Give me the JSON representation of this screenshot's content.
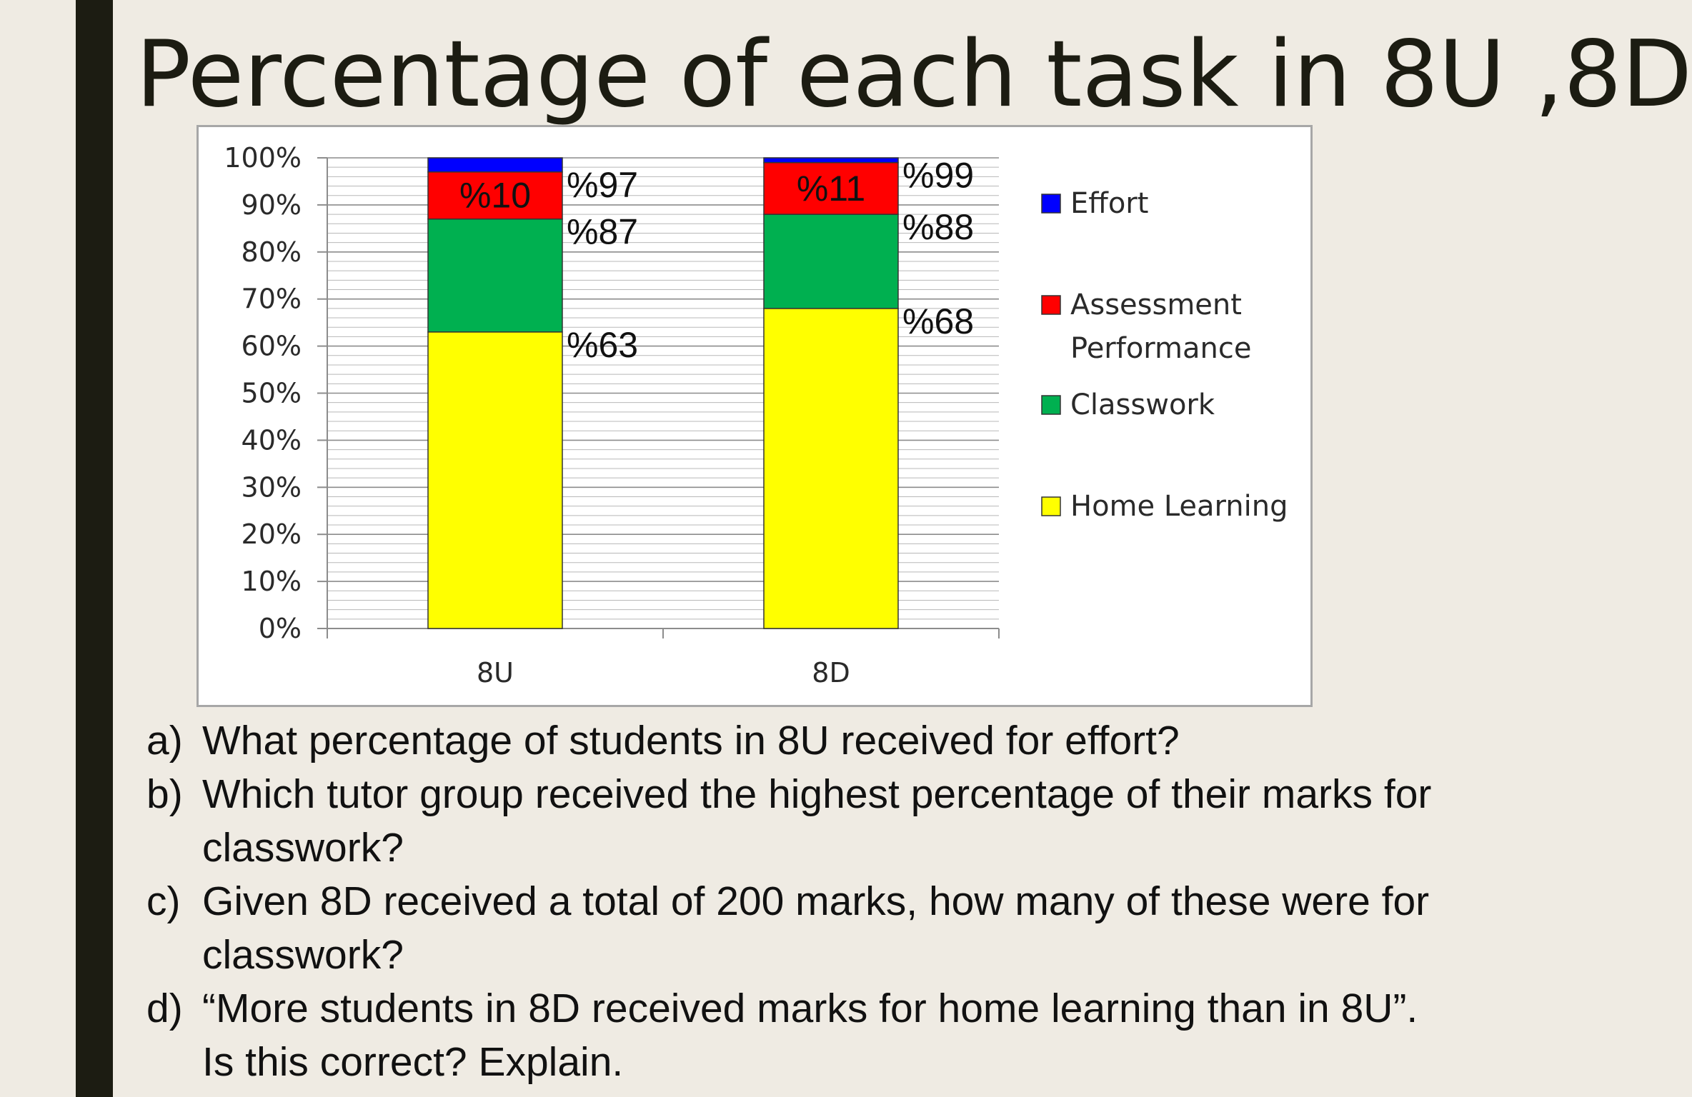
{
  "slide": {
    "title": "Percentage of each task in 8U ,8D"
  },
  "chart_data": {
    "type": "bar",
    "stacked": true,
    "percent_stacked": true,
    "title": "",
    "xlabel": "",
    "ylabel": "",
    "ylim": [
      0,
      100
    ],
    "y_ticks": [
      "0%",
      "10%",
      "20%",
      "30%",
      "40%",
      "50%",
      "60%",
      "70%",
      "80%",
      "90%",
      "100%"
    ],
    "grid": true,
    "legend_position": "right",
    "categories": [
      "8U",
      "8D"
    ],
    "series": [
      {
        "name": "Home Learning",
        "color": "#ffff00",
        "values": [
          63,
          68
        ]
      },
      {
        "name": "Classwork",
        "color": "#00b050",
        "values": [
          24,
          20
        ]
      },
      {
        "name": "Assessment Performance",
        "color": "#ff0000",
        "values": [
          10,
          11
        ]
      },
      {
        "name": "Effort",
        "color": "#0000ff",
        "values": [
          3,
          1
        ]
      }
    ],
    "legend": [
      "Effort",
      "Assessment Performance",
      "Classwork",
      "Home Learning"
    ],
    "annotations": [
      {
        "category": "8U",
        "y": 97,
        "text": "%97",
        "placement": "right"
      },
      {
        "category": "8U",
        "y": 87,
        "text": "%87",
        "placement": "right"
      },
      {
        "category": "8U",
        "y": 63,
        "text": "%63",
        "placement": "right"
      },
      {
        "category": "8U",
        "y": 92,
        "text": "%10",
        "placement": "inside",
        "color": "#1a1a1a"
      },
      {
        "category": "8D",
        "y": 99,
        "text": "%99",
        "placement": "right"
      },
      {
        "category": "8D",
        "y": 88,
        "text": "%88",
        "placement": "right"
      },
      {
        "category": "8D",
        "y": 68,
        "text": "%68",
        "placement": "right"
      },
      {
        "category": "8D",
        "y": 93.5,
        "text": "%11",
        "placement": "inside",
        "color": "#1a1a1a"
      }
    ]
  },
  "questions": [
    {
      "letter": "a)",
      "text": "What percentage of students in 8U received for effort?"
    },
    {
      "letter": "b)",
      "text": "Which tutor group received the highest percentage of their marks for classwork?"
    },
    {
      "letter": "c)",
      "text": "Given 8D received a total of 200 marks, how many of these were for classwork?"
    },
    {
      "letter": "d)",
      "text": "“More students in 8D received marks for home learning than in 8U”. Is this correct? Explain."
    }
  ]
}
